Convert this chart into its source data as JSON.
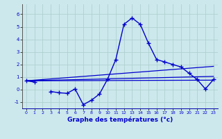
{
  "xlabel": "Graphe des températures (°c)",
  "xlim": [
    -0.5,
    23.5
  ],
  "ylim": [
    -1.5,
    6.8
  ],
  "yticks": [
    -1,
    0,
    1,
    2,
    3,
    4,
    5,
    6
  ],
  "xticks": [
    0,
    1,
    2,
    3,
    4,
    5,
    6,
    7,
    8,
    9,
    10,
    11,
    12,
    13,
    14,
    15,
    16,
    17,
    18,
    19,
    20,
    21,
    22,
    23
  ],
  "background_color": "#cce8ec",
  "grid_color": "#aacccc",
  "line_color": "#0000cc",
  "main_curve_x": [
    0,
    1,
    2,
    3,
    4,
    5,
    6,
    7,
    8,
    9,
    10,
    11,
    12,
    13,
    14,
    15,
    16,
    17,
    18,
    19,
    20,
    21,
    22,
    23
  ],
  "main_curve_y": [
    0.7,
    0.6,
    null,
    -0.15,
    -0.25,
    -0.3,
    0.05,
    -1.2,
    -0.85,
    -0.35,
    0.85,
    2.4,
    5.2,
    5.7,
    5.2,
    3.7,
    2.4,
    2.2,
    2.0,
    1.8,
    1.3,
    0.8,
    0.05,
    0.8
  ],
  "trend_lines": [
    {
      "x0": 0,
      "y0": 0.7,
      "x1": 23,
      "y1": 0.75
    },
    {
      "x0": 0,
      "y0": 0.7,
      "x1": 23,
      "y1": 1.05
    },
    {
      "x0": 0,
      "y0": 0.7,
      "x1": 23,
      "y1": 1.85
    }
  ]
}
